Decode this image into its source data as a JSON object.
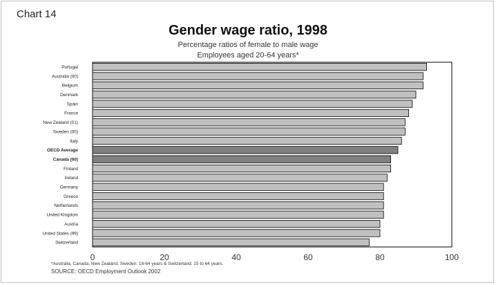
{
  "header": {
    "chart_label": "Chart  14"
  },
  "chart_data": {
    "type": "bar",
    "orientation": "horizontal",
    "title": "Gender wage ratio, 1998",
    "subtitle_lines": [
      "Percentage ratios of female to male wage",
      "Employees aged 20-64 years*"
    ],
    "xlabel": "",
    "ylabel": "",
    "xlim": [
      0,
      100
    ],
    "x_ticks": [
      0,
      20,
      40,
      60,
      80,
      100
    ],
    "grid": false,
    "categories": [
      "Portugal",
      "Australia (00)",
      "Belgium",
      "Denmark",
      "Spain",
      "France",
      "New Zealand (01)",
      "Sweden (00)",
      "Italy",
      "OECD Average",
      "Canada (00)",
      "Finland",
      "Ireland",
      "Germany",
      "Greece",
      "Netherlands",
      "United Kingdom",
      "Austria",
      "United States (99)",
      "Switzerland"
    ],
    "values": [
      93,
      92,
      92,
      90,
      89,
      88,
      87,
      87,
      86,
      85,
      83,
      83,
      82,
      81,
      81,
      81,
      81,
      80,
      80,
      77
    ],
    "highlighted": [
      "OECD Average",
      "Canada (00)"
    ],
    "colors": {
      "bar": "#c0c0c0",
      "highlight_bar": "#808080",
      "bar_border": "#000000"
    }
  },
  "footer": {
    "footnote": "*Australia, Canada, New Zealand, Sweden: 18-64 years & Switzerland: 15 to 64 years.",
    "source": "SOURCE: OECD Employment Outlook 2002"
  }
}
